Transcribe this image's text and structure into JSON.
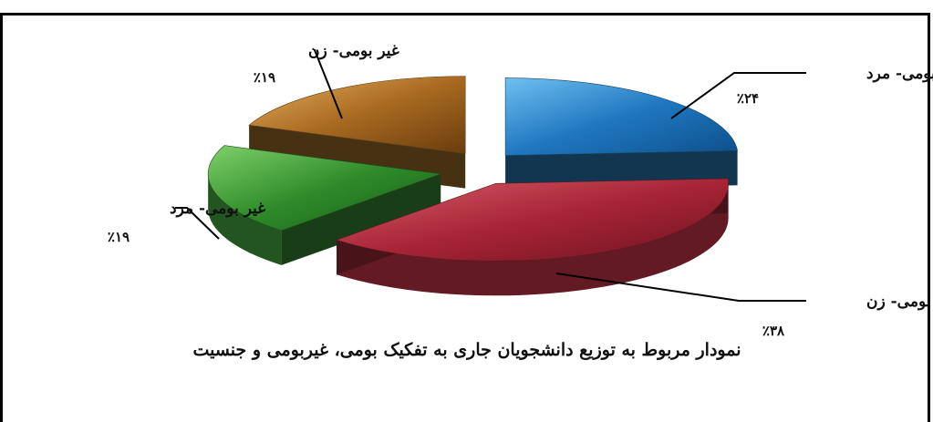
{
  "chart_data": {
    "type": "pie",
    "title": "نمودار مربوط به توزیع دانشجویان جاری به تفکیک بومی، غیربومی و جنسیت",
    "slices": [
      {
        "label": "بومی- مرد",
        "value": 24,
        "value_label": "٪۲۴",
        "color": "#2e86c8"
      },
      {
        "label": "بومی- زن",
        "value": 38,
        "value_label": "٪۳۸",
        "color": "#b5303f"
      },
      {
        "label": "غیر بومی- مرد",
        "value": 19,
        "value_label": "٪۱۹",
        "color": "#3f9a3a"
      },
      {
        "label": "غیر بومی- زن",
        "value": 19,
        "value_label": "٪۱۹",
        "color": "#b07a2c"
      }
    ],
    "legend": "none",
    "style": "3d-exploded"
  }
}
